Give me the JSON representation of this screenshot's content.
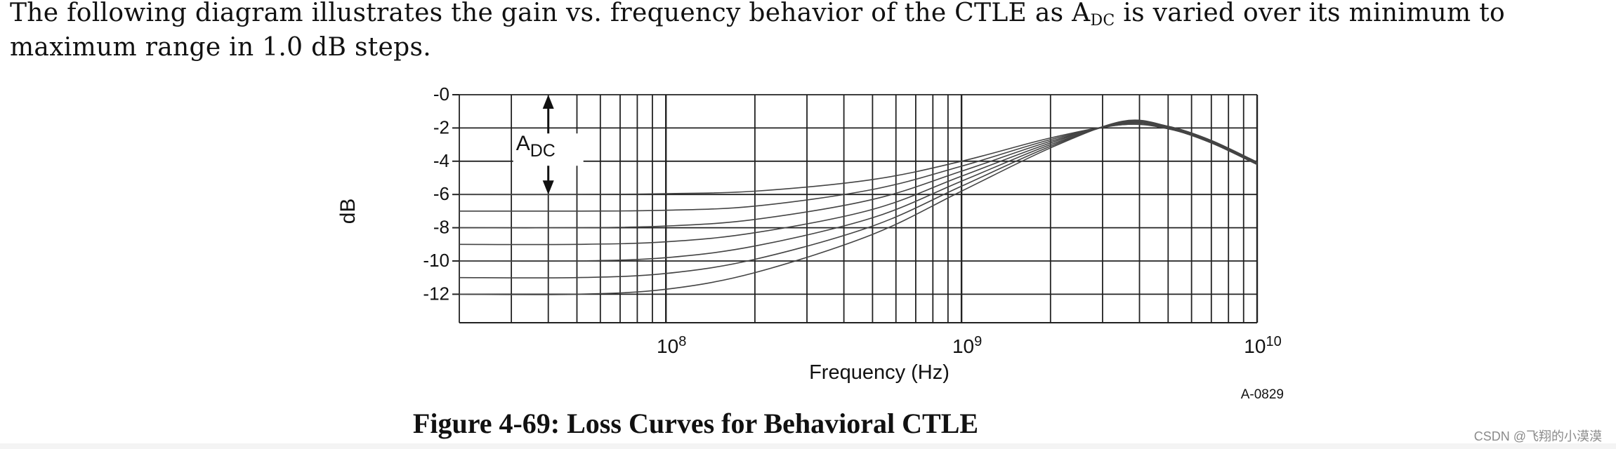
{
  "intro": {
    "text_before": "The following diagram illustrates the gain vs. frequency behavior of the CTLE as A",
    "subscript": "DC",
    "text_after": " is varied over its minimum to maximum range in 1.0 dB steps."
  },
  "figure": {
    "caption": "Figure 4-69:  Loss Curves for Behavioral CTLE",
    "id_label": "A-0829"
  },
  "watermark": "CSDN @飞翔的小漠漠",
  "chart_data": {
    "type": "line",
    "title": "",
    "xlabel": "Frequency (Hz)",
    "ylabel": "dB",
    "xscale": "log",
    "xlim": [
      20000000,
      10000000000
    ],
    "ylim": [
      -14,
      0
    ],
    "grid": true,
    "xticks": [
      100000000,
      1000000000,
      10000000000
    ],
    "xtick_labels": [
      {
        "base": "10",
        "exp": "8"
      },
      {
        "base": "10",
        "exp": "9"
      },
      {
        "base": "10",
        "exp": "10"
      }
    ],
    "yticks": [
      0,
      -2,
      -4,
      -6,
      -8,
      -10,
      -12
    ],
    "ytick_labels": [
      "-0",
      "-2",
      "-4",
      "-6",
      "-8",
      "-10",
      "-12"
    ],
    "annotation": {
      "label": "A",
      "subscript": "DC",
      "from_db": -6,
      "to_db": 0
    },
    "x": [
      20000000,
      50000000,
      100000000,
      200000000,
      500000000,
      1000000000,
      2000000000,
      3500000000,
      5000000000,
      7000000000,
      10000000000
    ],
    "series": [
      {
        "values": [
          -6.0,
          -6.0,
          -5.95,
          -5.8,
          -5.1,
          -4.0,
          -2.6,
          -1.8,
          -2.05,
          -2.9,
          -4.2
        ]
      },
      {
        "values": [
          -7.0,
          -7.0,
          -6.95,
          -6.7,
          -5.7,
          -4.3,
          -2.7,
          -1.8,
          -2.05,
          -2.9,
          -4.2
        ]
      },
      {
        "values": [
          -8.0,
          -8.0,
          -7.9,
          -7.5,
          -6.3,
          -4.6,
          -2.8,
          -1.75,
          -2.0,
          -2.85,
          -4.15
        ]
      },
      {
        "values": [
          -9.0,
          -9.0,
          -8.85,
          -8.3,
          -6.9,
          -4.9,
          -2.9,
          -1.7,
          -1.95,
          -2.8,
          -4.15
        ]
      },
      {
        "values": [
          -10.0,
          -10.0,
          -9.8,
          -9.1,
          -7.4,
          -5.2,
          -3.0,
          -1.7,
          -1.95,
          -2.8,
          -4.1
        ]
      },
      {
        "values": [
          -11.0,
          -11.0,
          -10.75,
          -9.9,
          -7.9,
          -5.5,
          -3.1,
          -1.65,
          -1.9,
          -2.75,
          -4.1
        ]
      },
      {
        "values": [
          -12.0,
          -12.0,
          -11.7,
          -10.7,
          -8.4,
          -5.8,
          -3.2,
          -1.6,
          -1.9,
          -2.75,
          -4.05
        ]
      }
    ]
  }
}
